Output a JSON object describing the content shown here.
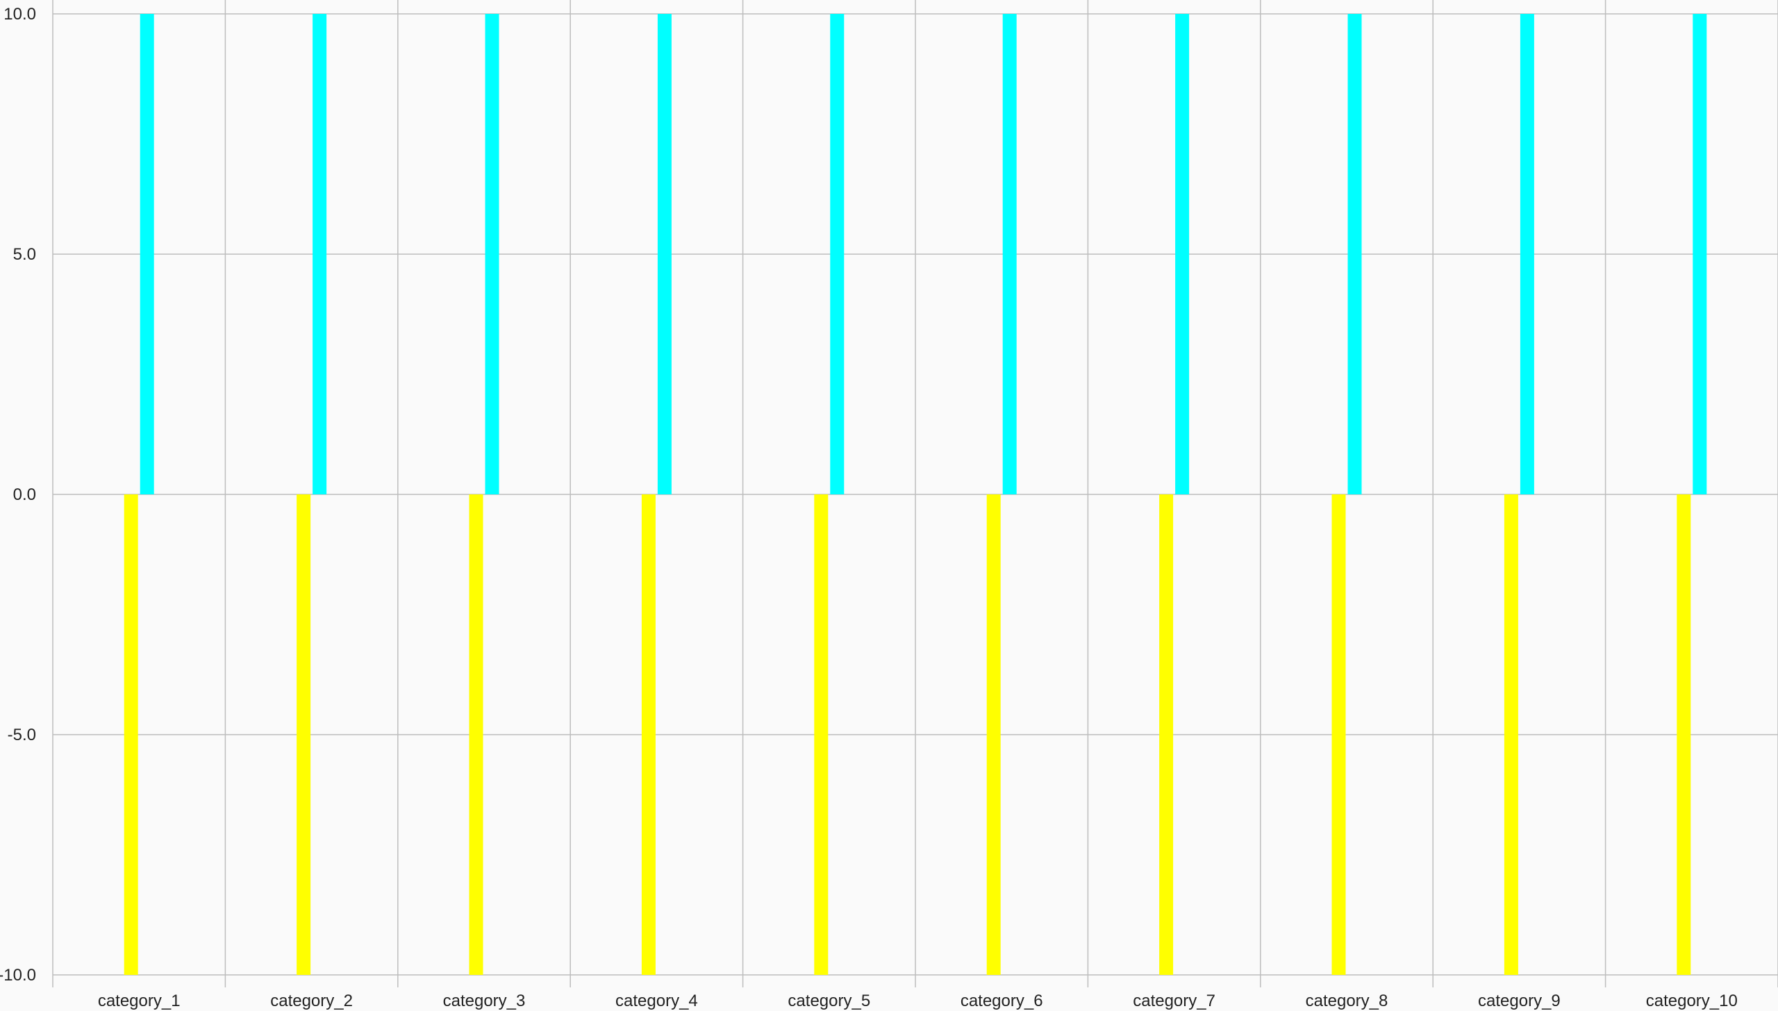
{
  "chart_data": {
    "type": "bar",
    "title": "",
    "xlabel": "",
    "ylabel": "",
    "categories": [
      "category_1",
      "category_2",
      "category_3",
      "category_4",
      "category_5",
      "category_6",
      "category_7",
      "category_8",
      "category_9",
      "category_10"
    ],
    "series": [
      {
        "values": [
          -10,
          -10,
          -10,
          -10,
          -10,
          -10,
          -10,
          -10,
          -10,
          -10
        ],
        "color": "#ffff00"
      },
      {
        "values": [
          10,
          10,
          10,
          10,
          10,
          10,
          10,
          10,
          10,
          10
        ],
        "color": "#00ffff"
      }
    ],
    "ylim": [
      -10,
      10
    ],
    "yticks": [
      10,
      5,
      0,
      -5,
      -10
    ],
    "ytick_labels": [
      "10.0",
      "5.0",
      "0.0",
      "-5.0",
      "-10.0"
    ],
    "grid": true,
    "legend": "none"
  },
  "colors": {
    "background": "#fafafa",
    "grid": "#bdbdbd",
    "text": "#222222"
  }
}
